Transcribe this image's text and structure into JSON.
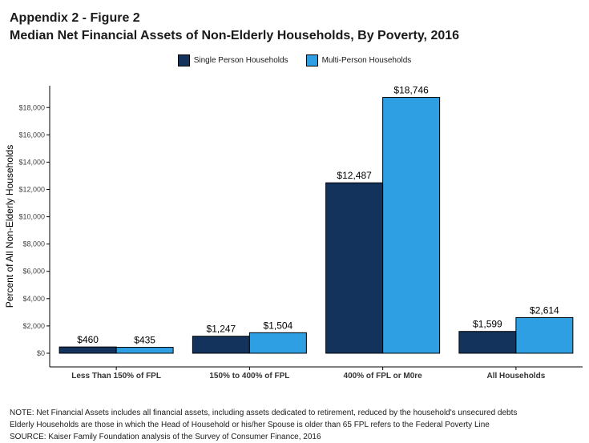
{
  "header": {
    "appendix": "Appendix 2 - Figure 2",
    "title": "Median Net Financial Assets of Non-Elderly Households, By Poverty, 2016"
  },
  "legend": {
    "items": [
      "Single Person Households",
      "Multi-Person Households"
    ]
  },
  "notes": {
    "line1": "NOTE: Net Financial Assets includes all financial assets, including assets dedicated to retirement, reduced by the household's unsecured debts",
    "line2": "Elderly Households are those in which the Head of Household or his/her Spouse is older than 65 FPL refers to the Federal Poverty Line",
    "line3": "SOURCE: Kaiser Family Foundation analysis of the Survey of Consumer Finance, 2016"
  },
  "chart_data": {
    "type": "bar",
    "ylabel": "Percent of All Non-Elderly Households",
    "xlabel": "",
    "categories": [
      "Less Than 150% of FPL",
      "150% to 400% of FPL",
      "400% of FPL or M0re",
      "All Households"
    ],
    "series": [
      {
        "name": "Single Person Households",
        "color": "#14335c",
        "values": [
          460,
          1247,
          12487,
          1599
        ],
        "labels": [
          "$460",
          "$1,247",
          "$12,487",
          "$1,599"
        ]
      },
      {
        "name": "Multi-Person Households",
        "color": "#2e9fe3",
        "values": [
          435,
          1504,
          18746,
          2614
        ],
        "labels": [
          "$435",
          "$1,504",
          "$18,746",
          "$2,614"
        ]
      }
    ],
    "yticks": [
      0,
      2000,
      4000,
      6000,
      8000,
      10000,
      12000,
      14000,
      16000,
      18000
    ],
    "ytick_labels": [
      "$0",
      "$2,000",
      "$4,000",
      "$6,000",
      "$8,000",
      "$10,000",
      "$12,000",
      "$14,000",
      "$16,000",
      "$18,000"
    ],
    "ylim": [
      -1000,
      19600
    ],
    "grid": false,
    "legend_position": "top-center"
  }
}
